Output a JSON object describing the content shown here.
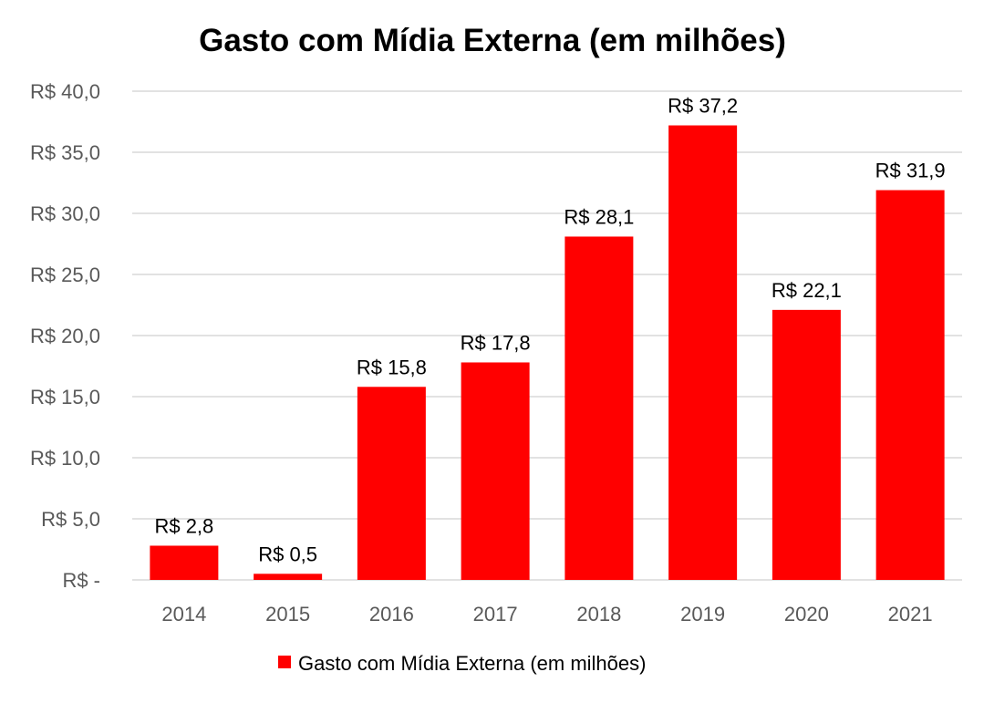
{
  "chart_data": {
    "type": "bar",
    "title": "Gasto com Mídia Externa (em milhões)",
    "xlabel": "",
    "ylabel": "",
    "categories": [
      "2014",
      "2015",
      "2016",
      "2017",
      "2018",
      "2019",
      "2020",
      "2021"
    ],
    "series": [
      {
        "name": "Gasto com Mídia Externa (em milhões)",
        "values": [
          2.8,
          0.5,
          15.8,
          17.8,
          28.1,
          37.2,
          22.1,
          31.9
        ],
        "data_labels": [
          "R$ 2,8",
          "R$ 0,5",
          "R$ 15,8",
          "R$ 17,8",
          "R$ 28,1",
          "R$ 37,2",
          "R$ 22,1",
          "R$ 31,9"
        ],
        "color": "#ff0000"
      }
    ],
    "ylim": [
      0,
      40
    ],
    "yticks": [
      0,
      5,
      10,
      15,
      20,
      25,
      30,
      35,
      40
    ],
    "ytick_labels": [
      "R$ -",
      "R$ 5,0",
      "R$ 10,0",
      "R$ 15,0",
      "R$ 20,0",
      "R$ 25,0",
      "R$ 30,0",
      "R$ 35,0",
      "R$ 40,0"
    ],
    "grid": true,
    "legend_position": "bottom",
    "gridline_color": "#d9d9d9",
    "tick_color": "#595959"
  }
}
